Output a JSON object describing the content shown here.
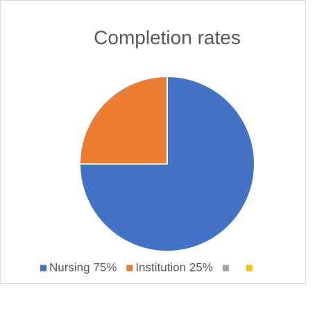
{
  "chart_data": {
    "type": "pie",
    "title": "Completion rates",
    "categories": [
      "Nursing 75%",
      "Institution 25%",
      null,
      null
    ],
    "values": [
      75,
      25,
      0,
      0
    ],
    "colors": [
      "#4472c4",
      "#ed7d31",
      "#a5a5a5",
      "#ffc000"
    ],
    "legend": "bottom"
  }
}
